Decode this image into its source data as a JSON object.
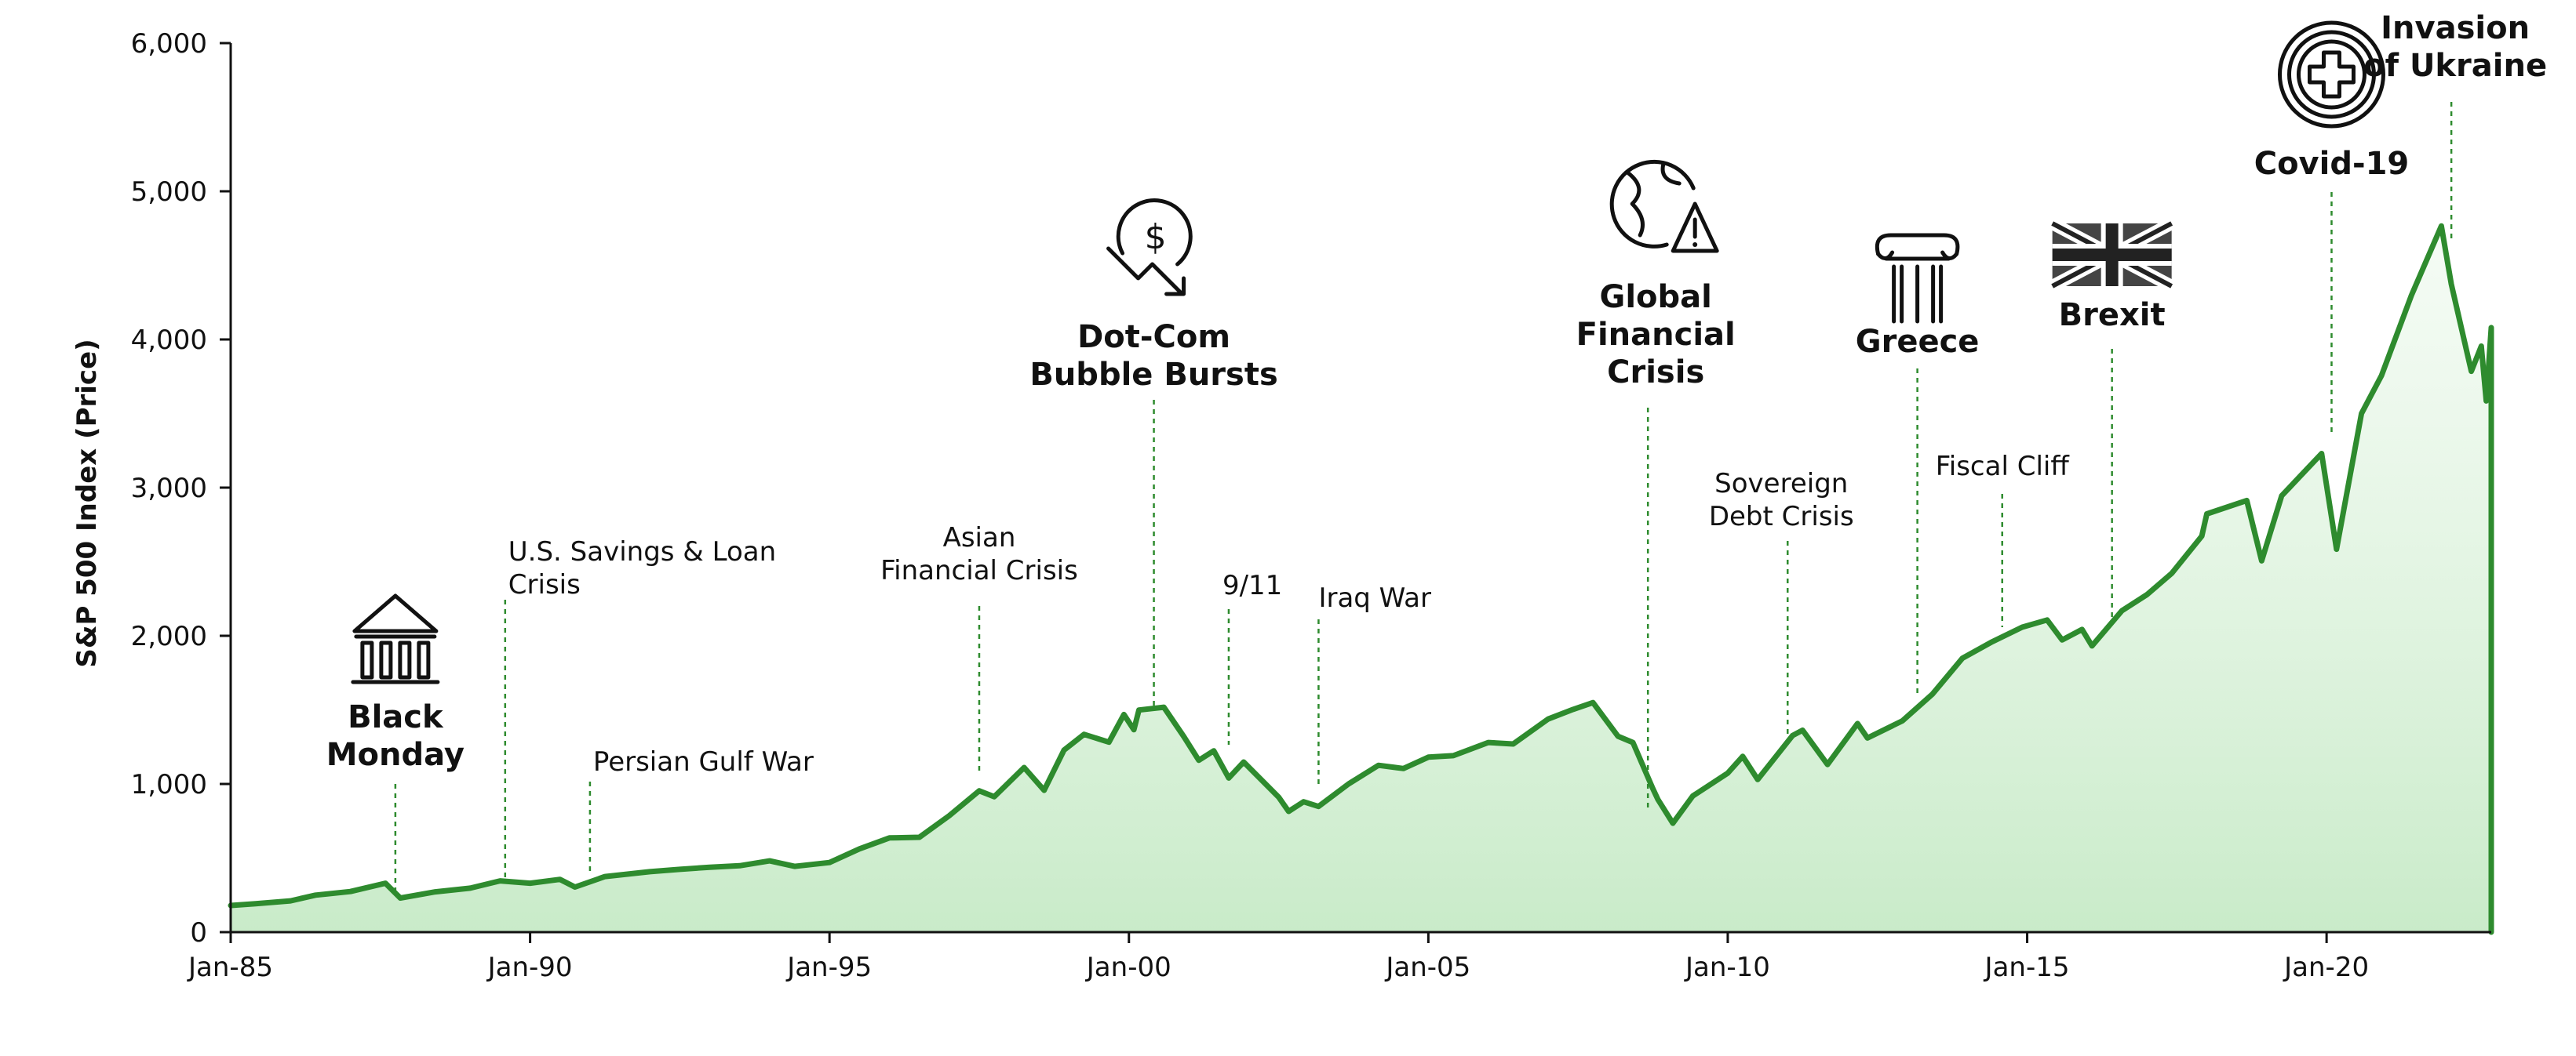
{
  "chart_data": {
    "type": "area",
    "title": "",
    "xlabel": "",
    "ylabel": "S&P 500 Index (Price)",
    "xlim": [
      "1985-01",
      "2022-10"
    ],
    "ylim": [
      0,
      6000
    ],
    "grid": false,
    "legend": "none",
    "colors": {
      "line": "#2e8b2e",
      "fill_top": "#c9ebc9",
      "fill_bottom": "#eef9ee",
      "event_line": "#2e8b2e",
      "axis": "#111111"
    },
    "y_ticks": [
      {
        "value": 0,
        "label": "0"
      },
      {
        "value": 1000,
        "label": "1,000"
      },
      {
        "value": 2000,
        "label": "2,000"
      },
      {
        "value": 3000,
        "label": "3,000"
      },
      {
        "value": 4000,
        "label": "4,000"
      },
      {
        "value": 5000,
        "label": "5,000"
      },
      {
        "value": 6000,
        "label": "6,000"
      }
    ],
    "x_ticks": [
      {
        "value": "1985-01",
        "label": "Jan-85"
      },
      {
        "value": "1990-01",
        "label": "Jan-90"
      },
      {
        "value": "1995-01",
        "label": "Jan-95"
      },
      {
        "value": "2000-01",
        "label": "Jan-00"
      },
      {
        "value": "2005-01",
        "label": "Jan-05"
      },
      {
        "value": "2010-01",
        "label": "Jan-10"
      },
      {
        "value": "2015-01",
        "label": "Jan-15"
      },
      {
        "value": "2020-01",
        "label": "Jan-20"
      }
    ],
    "series": [
      {
        "points": [
          [
            "1985-01",
            180
          ],
          [
            "1985-06",
            192
          ],
          [
            "1986-01",
            211
          ],
          [
            "1986-06",
            250
          ],
          [
            "1987-01",
            274
          ],
          [
            "1987-08",
            330
          ],
          [
            "1987-11",
            230
          ],
          [
            "1988-06",
            272
          ],
          [
            "1989-01",
            297
          ],
          [
            "1989-07",
            346
          ],
          [
            "1990-01",
            330
          ],
          [
            "1990-07",
            356
          ],
          [
            "1990-10",
            304
          ],
          [
            "1991-04",
            375
          ],
          [
            "1992-01",
            408
          ],
          [
            "1992-07",
            424
          ],
          [
            "1993-01",
            438
          ],
          [
            "1993-07",
            448
          ],
          [
            "1994-01",
            481
          ],
          [
            "1994-06",
            444
          ],
          [
            "1995-01",
            470
          ],
          [
            "1995-07",
            562
          ],
          [
            "1996-01",
            636
          ],
          [
            "1996-07",
            640
          ],
          [
            "1997-01",
            786
          ],
          [
            "1997-07",
            954
          ],
          [
            "1997-10",
            914
          ],
          [
            "1998-04",
            1111
          ],
          [
            "1998-08",
            957
          ],
          [
            "1998-12",
            1229
          ],
          [
            "1999-04",
            1335
          ],
          [
            "1999-09",
            1282
          ],
          [
            "1999-12",
            1469
          ],
          [
            "2000-02",
            1366
          ],
          [
            "2000-03",
            1499
          ],
          [
            "2000-08",
            1518
          ],
          [
            "2000-12",
            1320
          ],
          [
            "2001-03",
            1160
          ],
          [
            "2001-06",
            1224
          ],
          [
            "2001-09",
            1040
          ],
          [
            "2001-12",
            1148
          ],
          [
            "2002-07",
            911
          ],
          [
            "2002-09",
            815
          ],
          [
            "2002-12",
            880
          ],
          [
            "2003-03",
            848
          ],
          [
            "2003-09",
            1000
          ],
          [
            "2004-03",
            1126
          ],
          [
            "2004-08",
            1104
          ],
          [
            "2005-01",
            1181
          ],
          [
            "2005-06",
            1191
          ],
          [
            "2006-01",
            1280
          ],
          [
            "2006-06",
            1270
          ],
          [
            "2007-01",
            1438
          ],
          [
            "2007-06",
            1503
          ],
          [
            "2007-10",
            1549
          ],
          [
            "2008-03",
            1322
          ],
          [
            "2008-06",
            1280
          ],
          [
            "2008-10",
            968
          ],
          [
            "2008-11",
            896
          ],
          [
            "2009-02",
            735
          ],
          [
            "2009-06",
            919
          ],
          [
            "2010-01",
            1073
          ],
          [
            "2010-04",
            1186
          ],
          [
            "2010-07",
            1030
          ],
          [
            "2011-02",
            1327
          ],
          [
            "2011-04",
            1363
          ],
          [
            "2011-09",
            1131
          ],
          [
            "2012-03",
            1408
          ],
          [
            "2012-05",
            1310
          ],
          [
            "2012-12",
            1426
          ],
          [
            "2013-06",
            1606
          ],
          [
            "2013-12",
            1848
          ],
          [
            "2014-06",
            1960
          ],
          [
            "2014-12",
            2058
          ],
          [
            "2015-05",
            2107
          ],
          [
            "2015-08",
            1972
          ],
          [
            "2015-12",
            2043
          ],
          [
            "2016-02",
            1932
          ],
          [
            "2016-08",
            2170
          ],
          [
            "2017-01",
            2278
          ],
          [
            "2017-06",
            2423
          ],
          [
            "2017-12",
            2673
          ],
          [
            "2018-01",
            2823
          ],
          [
            "2018-09",
            2913
          ],
          [
            "2018-12",
            2506
          ],
          [
            "2019-04",
            2945
          ],
          [
            "2019-12",
            3230
          ],
          [
            "2020-03",
            2584
          ],
          [
            "2020-08",
            3500
          ],
          [
            "2020-12",
            3756
          ],
          [
            "2021-06",
            4297
          ],
          [
            "2021-12",
            4766
          ],
          [
            "2022-02",
            4373
          ],
          [
            "2022-06",
            3785
          ],
          [
            "2022-08",
            3955
          ],
          [
            "2022-09",
            3585
          ],
          [
            "2022-10",
            4080
          ]
        ]
      }
    ],
    "annotations": [
      {
        "date": "1987-10",
        "text": [
          "Black",
          "Monday"
        ],
        "major": true,
        "icon": "bank-icon"
      },
      {
        "date": "1989-08",
        "text": [
          "U.S. Savings & Loan",
          "Crisis"
        ],
        "major": false,
        "icon": ""
      },
      {
        "date": "1991-01",
        "text": [
          "Persian Gulf War"
        ],
        "major": false,
        "icon": ""
      },
      {
        "date": "1997-07",
        "text": [
          "Asian",
          "Financial Crisis"
        ],
        "major": false,
        "icon": ""
      },
      {
        "date": "2000-06",
        "text": [
          "Dot-Com",
          "Bubble Bursts"
        ],
        "major": true,
        "icon": "dollar-down-icon"
      },
      {
        "date": "2001-09",
        "text": [
          "9/11"
        ],
        "major": false,
        "icon": ""
      },
      {
        "date": "2003-03",
        "text": [
          "Iraq War"
        ],
        "major": false,
        "icon": ""
      },
      {
        "date": "2008-09",
        "text": [
          "Global",
          "Financial",
          "Crisis"
        ],
        "major": true,
        "icon": "globe-warning-icon"
      },
      {
        "date": "2011-01",
        "text": [
          "Sovereign",
          "Debt Crisis"
        ],
        "major": false,
        "icon": ""
      },
      {
        "date": "2013-03",
        "text": [
          "Greece"
        ],
        "major": true,
        "icon": "greek-column-icon"
      },
      {
        "date": "2014-08",
        "text": [
          "Fiscal Cliff"
        ],
        "major": false,
        "icon": ""
      },
      {
        "date": "2016-06",
        "text": [
          "Brexit"
        ],
        "major": true,
        "icon": "uk-flag-icon"
      },
      {
        "date": "2020-02",
        "text": [
          "Covid-19"
        ],
        "major": true,
        "icon": "medical-cross-icon"
      },
      {
        "date": "2022-02",
        "text": [
          "Invasion",
          "of Ukraine"
        ],
        "major": true,
        "icon": ""
      }
    ]
  }
}
